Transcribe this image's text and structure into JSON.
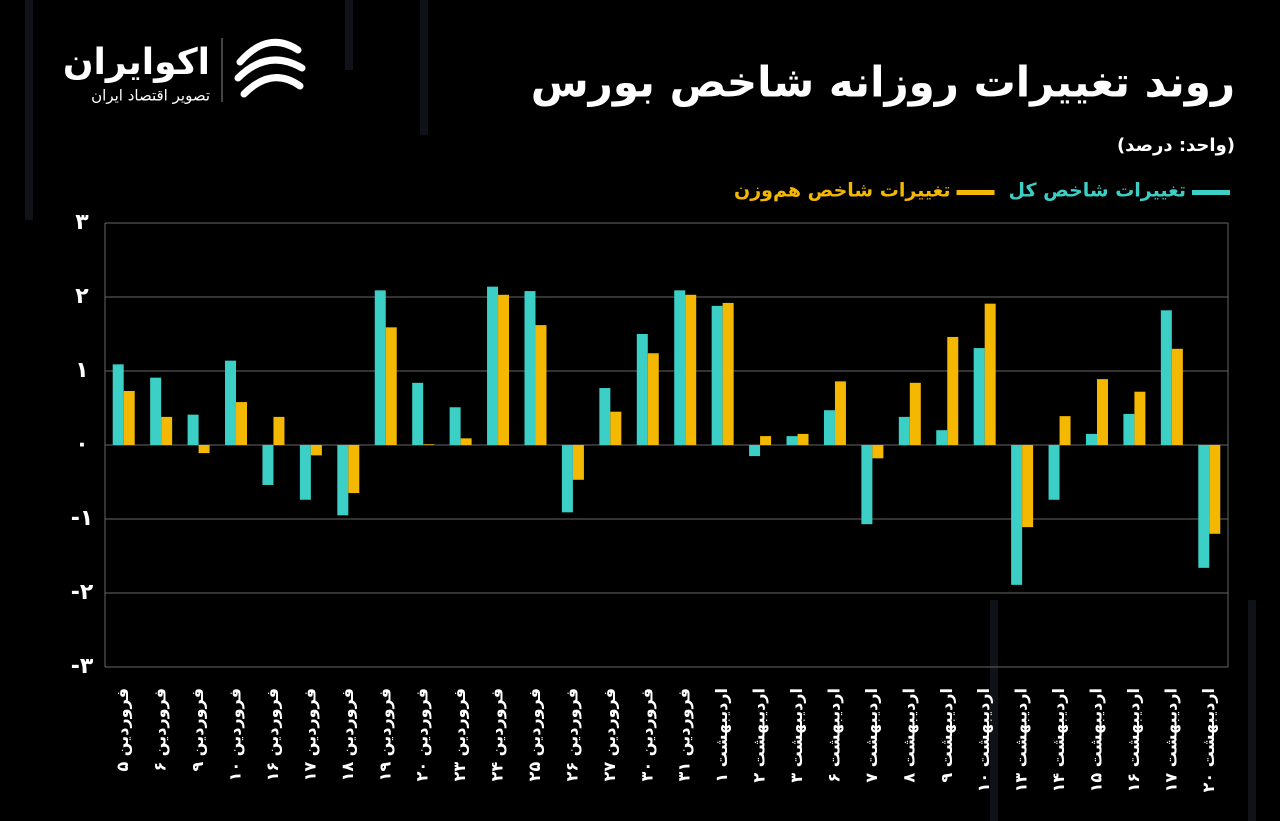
{
  "logo": {
    "name": "اکوایران",
    "tagline": "تصویر اقتصاد ایران"
  },
  "chart_data": {
    "type": "bar",
    "title": "روند تغییرات روزانه شاخص بورس",
    "subtitle": "(واحد: درصد)",
    "categories": [
      "فروردین ۵",
      "فروردین ۶",
      "فروردین ۹",
      "فروردین ۱۰",
      "فروردین ۱۶",
      "فروردین ۱۷",
      "فروردین ۱۸",
      "فروردین ۱۹",
      "فروردین ۲۰",
      "فروردین ۲۳",
      "فروردین ۲۴",
      "فروردین ۲۵",
      "فروردین ۲۶",
      "فروردین ۲۷",
      "فروردین ۳۰",
      "فروردین ۳۱",
      "اردیبهشت ۱",
      "اردیبهشت ۲",
      "اردیبهشت ۳",
      "اردیبهشت ۶",
      "اردیبهشت ۷",
      "اردیبهشت ۸",
      "اردیبهشت ۹",
      "اردیبهشت ۱۰",
      "اردیبهشت ۱۳",
      "اردیبهشت ۱۴",
      "اردیبهشت ۱۵",
      "اردیبهشت ۱۶",
      "اردیبهشت ۱۷",
      "اردیبهشت ۲۰"
    ],
    "series": [
      {
        "name": "تغییرات شاخص کل",
        "color": "#3ccfc6",
        "values": [
          1.09,
          0.91,
          0.41,
          1.14,
          -0.54,
          -0.74,
          -0.95,
          2.09,
          0.84,
          0.51,
          2.14,
          2.08,
          -0.91,
          0.77,
          1.5,
          2.09,
          1.88,
          -0.15,
          0.12,
          0.47,
          -1.07,
          0.38,
          0.2,
          1.31,
          -1.89,
          -0.74,
          0.15,
          0.42,
          1.82,
          -1.66
        ]
      },
      {
        "name": "تغییرات شاخص هم‌وزن",
        "color": "#f5b800",
        "values": [
          0.73,
          0.38,
          -0.11,
          0.58,
          0.38,
          -0.14,
          -0.65,
          1.59,
          0.01,
          0.09,
          2.03,
          1.62,
          -0.47,
          0.45,
          1.24,
          2.03,
          1.92,
          0.12,
          0.15,
          0.86,
          -0.18,
          0.84,
          1.46,
          1.91,
          -1.11,
          0.39,
          0.89,
          0.72,
          1.3,
          -1.2
        ]
      }
    ],
    "ylim": [
      -3,
      3
    ],
    "yticks": [
      {
        "value": 3,
        "label": "۳"
      },
      {
        "value": 2,
        "label": "۲"
      },
      {
        "value": 1,
        "label": "۱"
      },
      {
        "value": 0,
        "label": "۰"
      },
      {
        "value": -1,
        "label": "-۱"
      },
      {
        "value": -2,
        "label": "-۲"
      },
      {
        "value": -3,
        "label": "-۳"
      }
    ],
    "grid": true
  }
}
